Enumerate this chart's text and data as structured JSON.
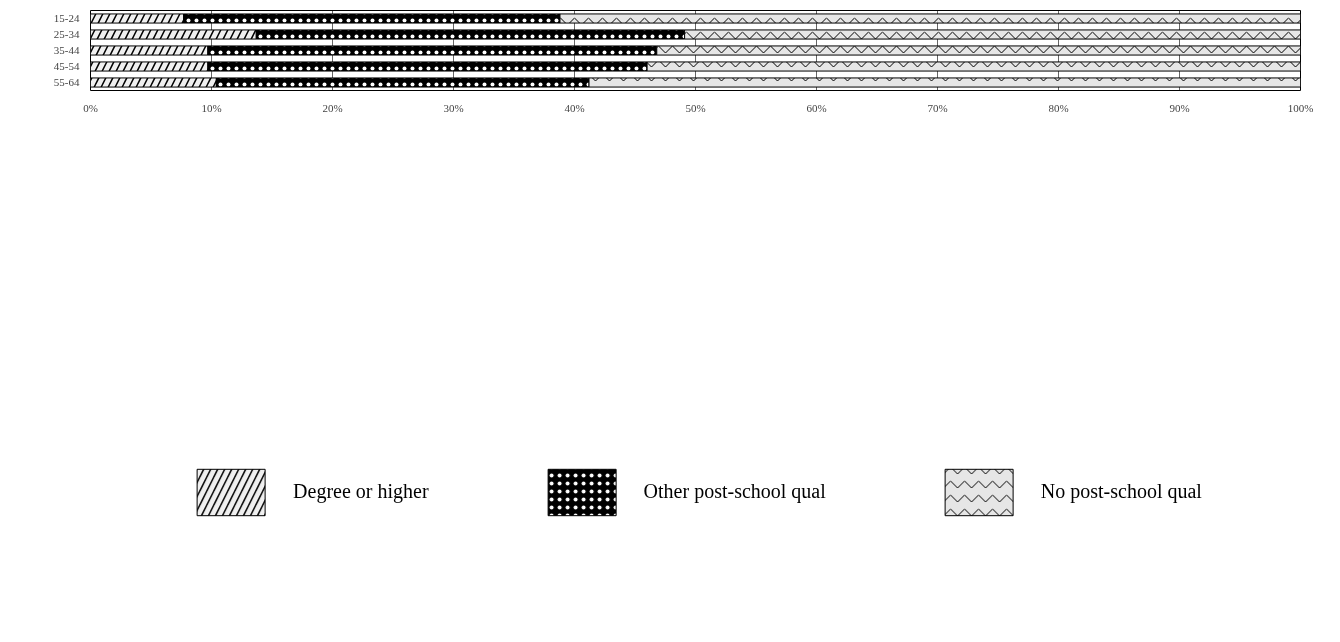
{
  "chart_data": {
    "type": "bar",
    "orientation": "horizontal",
    "stacked": true,
    "categories": [
      "15-24",
      "25-34",
      "35-44",
      "45-54",
      "55-64"
    ],
    "series": [
      {
        "name": "Degree or higher",
        "color": "#f0f0f0",
        "values": [
          7.7,
          13.7,
          9.7,
          9.7,
          10.4
        ]
      },
      {
        "name": "Other post-school qual",
        "color": "#000000",
        "values": [
          31.1,
          35.4,
          37.1,
          36.3,
          30.8
        ]
      },
      {
        "name": "No post-school qual",
        "color": "#e6e6e6",
        "values": [
          61.2,
          50.9,
          53.2,
          54.0,
          58.8
        ]
      }
    ],
    "xlim": [
      0,
      100
    ],
    "xticks": [
      {
        "value": 0,
        "label": "0%"
      },
      {
        "value": 10,
        "label": "10%"
      },
      {
        "value": 20,
        "label": "20%"
      },
      {
        "value": 30,
        "label": "30%"
      },
      {
        "value": 40,
        "label": "40%"
      },
      {
        "value": 50,
        "label": "50%"
      },
      {
        "value": 60,
        "label": "60%"
      },
      {
        "value": 70,
        "label": "70%"
      },
      {
        "value": 80,
        "label": "80%"
      },
      {
        "value": 90,
        "label": "90%"
      },
      {
        "value": 100,
        "label": "100%"
      }
    ],
    "grid": "x",
    "legend": "bottom"
  }
}
